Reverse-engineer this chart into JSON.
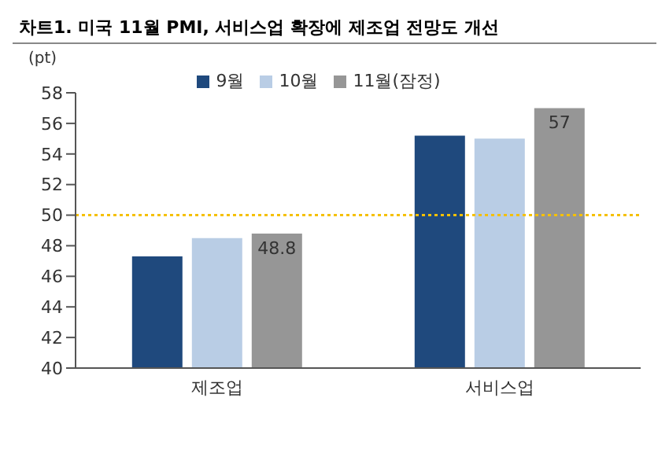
{
  "chart_data": {
    "type": "bar",
    "title": "차트1. 미국 11월 PMI, 서비스업 확장에 제조업 전망도 개선",
    "ylabel": "(pt)",
    "categories": [
      "제조업",
      "서비스업"
    ],
    "series": [
      {
        "name": "9월",
        "color": "#1f497d",
        "values": [
          47.3,
          55.2
        ]
      },
      {
        "name": "10월",
        "color": "#b9cde5",
        "values": [
          48.5,
          55.0
        ]
      },
      {
        "name": "11월(잠정)",
        "color": "#969696",
        "values": [
          48.8,
          57
        ],
        "value_labels": [
          "48.8",
          "57"
        ]
      }
    ],
    "ylim": [
      40,
      58
    ],
    "yticks": [
      40,
      42,
      44,
      46,
      48,
      50,
      52,
      54,
      56,
      58
    ],
    "grid": false,
    "legend": "top",
    "ref_lines": [
      {
        "axis": "y",
        "value": 50,
        "color": "#f5c000",
        "line_style": "dotted"
      }
    ]
  }
}
